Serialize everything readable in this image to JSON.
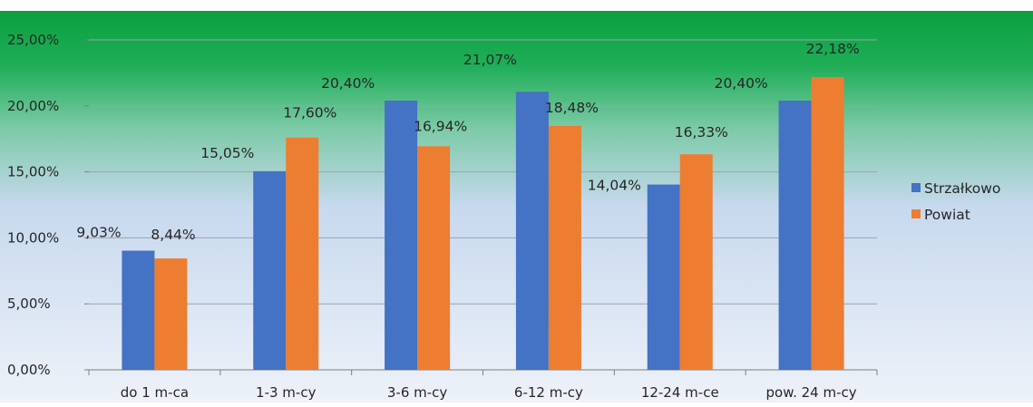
{
  "chart_data": {
    "type": "bar",
    "categories": [
      "do 1 m-ca",
      "1-3 m-cy",
      "3-6 m-cy",
      "6-12 m-cy",
      "12-24 m-ce",
      "pow. 24 m-cy"
    ],
    "series": [
      {
        "name": "Strzałkowo",
        "color": "#4472C4",
        "values": [
          9.03,
          15.05,
          20.4,
          21.07,
          14.04,
          20.4
        ],
        "labels": [
          "9,03%",
          "15,05%",
          "20,40%",
          "21,07%",
          "14,04%",
          "20,40%"
        ]
      },
      {
        "name": "Powiat",
        "color": "#ED7D31",
        "values": [
          8.44,
          17.6,
          16.94,
          18.48,
          16.33,
          22.18
        ],
        "labels": [
          "8,44%",
          "17,60%",
          "16,94%",
          "18,48%",
          "16,33%",
          "22,18%"
        ]
      }
    ],
    "ylim": [
      0,
      25
    ],
    "yticks": [
      0,
      5,
      10,
      15,
      20,
      25
    ],
    "ytick_labels": [
      "0,00%",
      "5,00%",
      "10,00%",
      "15,00%",
      "20,00%",
      "25,00%"
    ],
    "grid": true,
    "legend": "right",
    "title": "",
    "xlabel": "",
    "ylabel": ""
  }
}
